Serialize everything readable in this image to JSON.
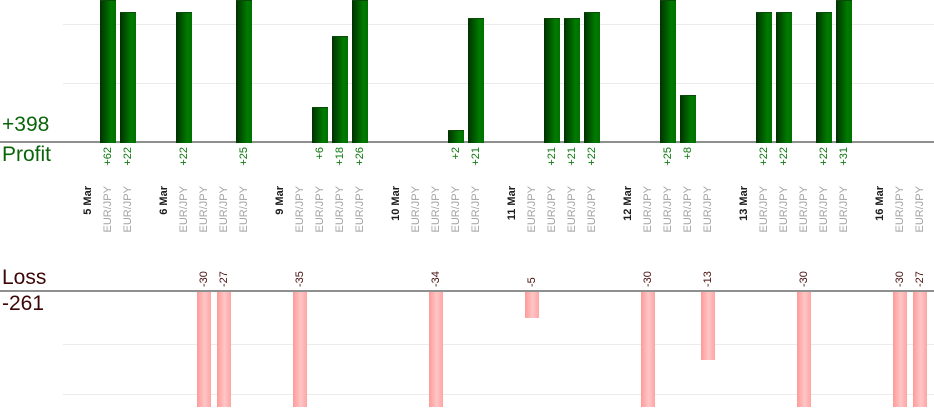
{
  "chart_data": {
    "type": "bar",
    "profit_section": {
      "label": "Profit",
      "total": "+398"
    },
    "loss_section": {
      "label": "Loss",
      "total": "-261"
    },
    "groups": [
      {
        "date": "5 Mar",
        "trades": [
          {
            "pair": "EUR/JPY",
            "value": 62,
            "label": "+62"
          },
          {
            "pair": "EUR/JPY",
            "value": 22,
            "label": "+22"
          }
        ]
      },
      {
        "date": "6 Mar",
        "trades": [
          {
            "pair": "EUR/JPY",
            "value": 22,
            "label": "+22"
          },
          {
            "pair": "EUR/JPY",
            "value": -30,
            "label": "-30"
          },
          {
            "pair": "EUR/JPY",
            "value": -27,
            "label": "-27"
          },
          {
            "pair": "EUR/JPY",
            "value": 25,
            "label": "+25"
          }
        ]
      },
      {
        "date": "9 Mar",
        "trades": [
          {
            "pair": "EUR/JPY",
            "value": -35,
            "label": "-35"
          },
          {
            "pair": "EUR/JPY",
            "value": 6,
            "label": "+6"
          },
          {
            "pair": "EUR/JPY",
            "value": 18,
            "label": "+18"
          },
          {
            "pair": "EUR/JPY",
            "value": 26,
            "label": "+26"
          }
        ]
      },
      {
        "date": "10 Mar",
        "trades": [
          {
            "pair": "EUR/JPY",
            "value": 0,
            "label": ""
          },
          {
            "pair": "EUR/JPY",
            "value": -34,
            "label": "-34"
          },
          {
            "pair": "EUR/JPY",
            "value": 2,
            "label": "+2"
          },
          {
            "pair": "EUR/JPY",
            "value": 21,
            "label": "+21"
          }
        ]
      },
      {
        "date": "11 Mar",
        "trades": [
          {
            "pair": "EUR/JPY",
            "value": -5,
            "label": "-5"
          },
          {
            "pair": "EUR/JPY",
            "value": 21,
            "label": "+21"
          },
          {
            "pair": "EUR/JPY",
            "value": 21,
            "label": "+21"
          },
          {
            "pair": "EUR/JPY",
            "value": 22,
            "label": "+22"
          }
        ]
      },
      {
        "date": "12 Mar",
        "trades": [
          {
            "pair": "EUR/JPY",
            "value": -30,
            "label": "-30"
          },
          {
            "pair": "EUR/JPY",
            "value": 25,
            "label": "+25"
          },
          {
            "pair": "EUR/JPY",
            "value": 8,
            "label": "+8"
          },
          {
            "pair": "EUR/JPY",
            "value": -13,
            "label": "-13"
          }
        ]
      },
      {
        "date": "13 Mar",
        "trades": [
          {
            "pair": "EUR/JPY",
            "value": 22,
            "label": "+22"
          },
          {
            "pair": "EUR/JPY",
            "value": 22,
            "label": "+22"
          },
          {
            "pair": "EUR/JPY",
            "value": -30,
            "label": "-30"
          },
          {
            "pair": "EUR/JPY",
            "value": 22,
            "label": "+22"
          },
          {
            "pair": "EUR/JPY",
            "value": 31,
            "label": "+31"
          }
        ]
      },
      {
        "date": "16 Mar",
        "trades": [
          {
            "pair": "EUR/JPY",
            "value": -30,
            "label": "-30"
          },
          {
            "pair": "EUR/JPY",
            "value": -27,
            "label": "-27"
          }
        ]
      }
    ],
    "axes": {
      "gridline_step": 10,
      "profit_visible_max": 24,
      "loss_visible_min": -22,
      "bars_clipped_at_plot_edges": true
    },
    "colors": {
      "profit_text": "#0a650a",
      "profit_value_text": "#0f7a0f",
      "loss_text": "#3f0808",
      "loss_value_text": "#4b1010",
      "profit_bar_dark": "#013101",
      "profit_bar_light": "#007c00",
      "loss_bar_dark": "#ff9a9a",
      "loss_bar_light": "#ffc6c6",
      "date_text": "#1c1c1c",
      "pair_text": "#a3a3a3",
      "axis_line": "#8f8f8f",
      "gridline": "#ebebeb"
    }
  }
}
